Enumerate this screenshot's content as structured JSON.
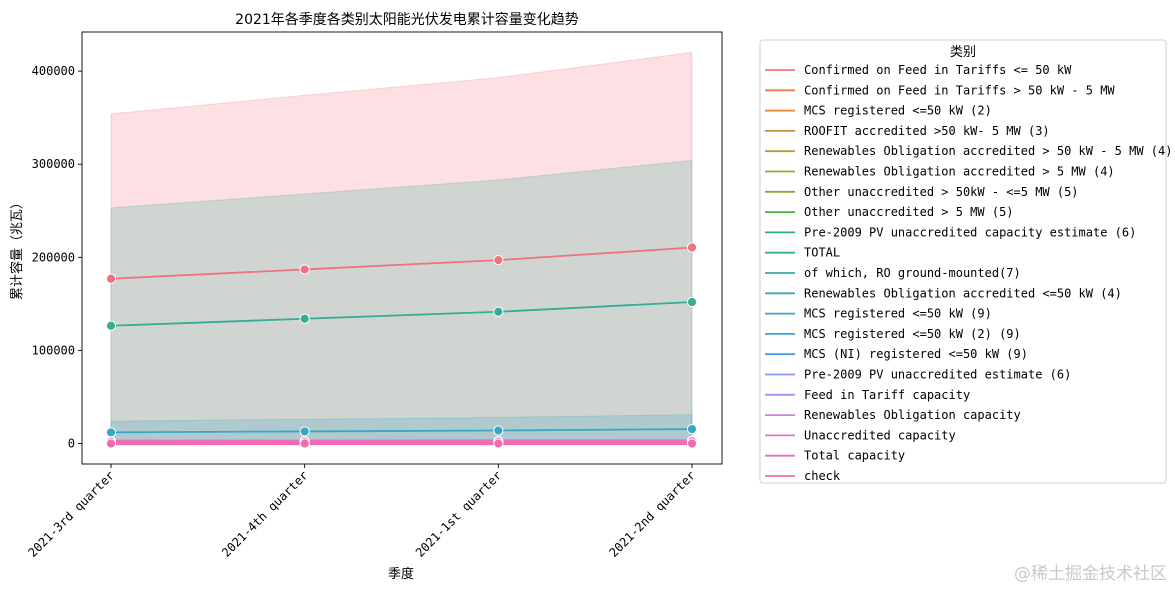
{
  "chart_data": {
    "type": "line",
    "title": "2021年各季度各类别太阳能光伏发电累计容量变化趋势",
    "xlabel": "季度",
    "ylabel": "累计容量（兆瓦）",
    "categories": [
      "2021-3rd quarter",
      "2021-4th quarter",
      "2021-1st quarter",
      "2021-2nd quarter"
    ],
    "ylim": [
      -22000,
      442000
    ],
    "yticks": [
      0,
      100000,
      200000,
      300000,
      400000
    ],
    "ytick_labels": [
      "0",
      "100000",
      "200000",
      "300000",
      "400000"
    ],
    "grid": false,
    "legend": {
      "title": "类别",
      "placement": "outside-right",
      "entries": [
        {
          "name": "Confirmed on Feed in Tariffs  <= 50 kW",
          "color": "#f0727f"
        },
        {
          "name": "Confirmed on Feed in Tariffs  > 50 kW - 5 MW",
          "color": "#ea7a52"
        },
        {
          "name": "MCS registered <=50 kW (2)",
          "color": "#e08436"
        },
        {
          "name": "ROOFIT accredited >50 kW- 5 MW (3)",
          "color": "#c9903a"
        },
        {
          "name": "Renewables Obligation accredited > 50 kW - 5 MW (4)",
          "color": "#b59a36"
        },
        {
          "name": "Renewables Obligation accredited > 5 MW (4)",
          "color": "#a0a234"
        },
        {
          "name": "Other unaccredited > 50kW - <=5 MW (5)",
          "color": "#82aa35"
        },
        {
          "name": "Other unaccredited > 5 MW (5)",
          "color": "#4fb13a"
        },
        {
          "name": "Pre-2009 PV unaccredited capacity estimate (6)",
          "color": "#35ac7a"
        },
        {
          "name": "TOTAL",
          "color": "#36ac95"
        },
        {
          "name": "of which, RO ground-mounted(7)",
          "color": "#38aaa6"
        },
        {
          "name": "Renewables Obligation accredited <=50 kW (4)",
          "color": "#39a9b4"
        },
        {
          "name": "MCS registered <=50 kW (9)",
          "color": "#3aa6c4"
        },
        {
          "name": "MCS registered <=50 kW (2) (9)",
          "color": "#3aa1d4"
        },
        {
          "name": "MCS (NI) registered <=50 kW (9)",
          "color": "#4a9be2"
        },
        {
          "name": "Pre-2009 PV unaccredited estimate (6)",
          "color": "#8a93e6"
        },
        {
          "name": "Feed in Tariff capacity",
          "color": "#b28aec"
        },
        {
          "name": "Renewables Obligation capacity",
          "color": "#d47ee4"
        },
        {
          "name": "Unaccredited capacity",
          "color": "#e670d6"
        },
        {
          "name": "Total capacity",
          "color": "#ec6cc4"
        },
        {
          "name": "check",
          "color": "#f06cac"
        }
      ]
    },
    "bands": [
      {
        "name": "Confirmed on Feed in Tariffs  <= 50 kW",
        "color": "#f0727f",
        "lower": [
          0,
          0,
          0,
          0
        ],
        "upper": [
          354000,
          374000,
          393000,
          420000
        ]
      },
      {
        "name": "TOTAL",
        "color": "#36ac95",
        "lower": [
          0,
          0,
          0,
          0
        ],
        "upper": [
          253000,
          268000,
          283000,
          304000
        ]
      },
      {
        "name": "MCS registered <=50 kW (9)",
        "color": "#3aa6c4",
        "lower": [
          0,
          0,
          0,
          0
        ],
        "upper": [
          24000,
          26000,
          28000,
          31000
        ]
      }
    ],
    "series": [
      {
        "name": "Confirmed on Feed in Tariffs  <= 50 kW",
        "color": "#f0727f",
        "values": [
          177000,
          187000,
          197000,
          210500
        ]
      },
      {
        "name": "TOTAL",
        "color": "#36ac95",
        "values": [
          126500,
          134000,
          141500,
          152000
        ]
      },
      {
        "name": "MCS registered <=50 kW (9)",
        "color": "#3aa6c4",
        "values": [
          12000,
          13000,
          14000,
          15500
        ]
      },
      {
        "name": "Feed in Tariff capacity",
        "color": "#b28aec",
        "values": [
          2500,
          2600,
          2700,
          2900
        ]
      },
      {
        "name": "Total capacity",
        "color": "#ec6cc4",
        "values": [
          2000,
          2100,
          2200,
          2400
        ]
      },
      {
        "name": "check",
        "color": "#f06cac",
        "values": [
          0,
          0,
          0,
          0
        ]
      }
    ]
  },
  "watermark": "@稀土掘金技术社区"
}
